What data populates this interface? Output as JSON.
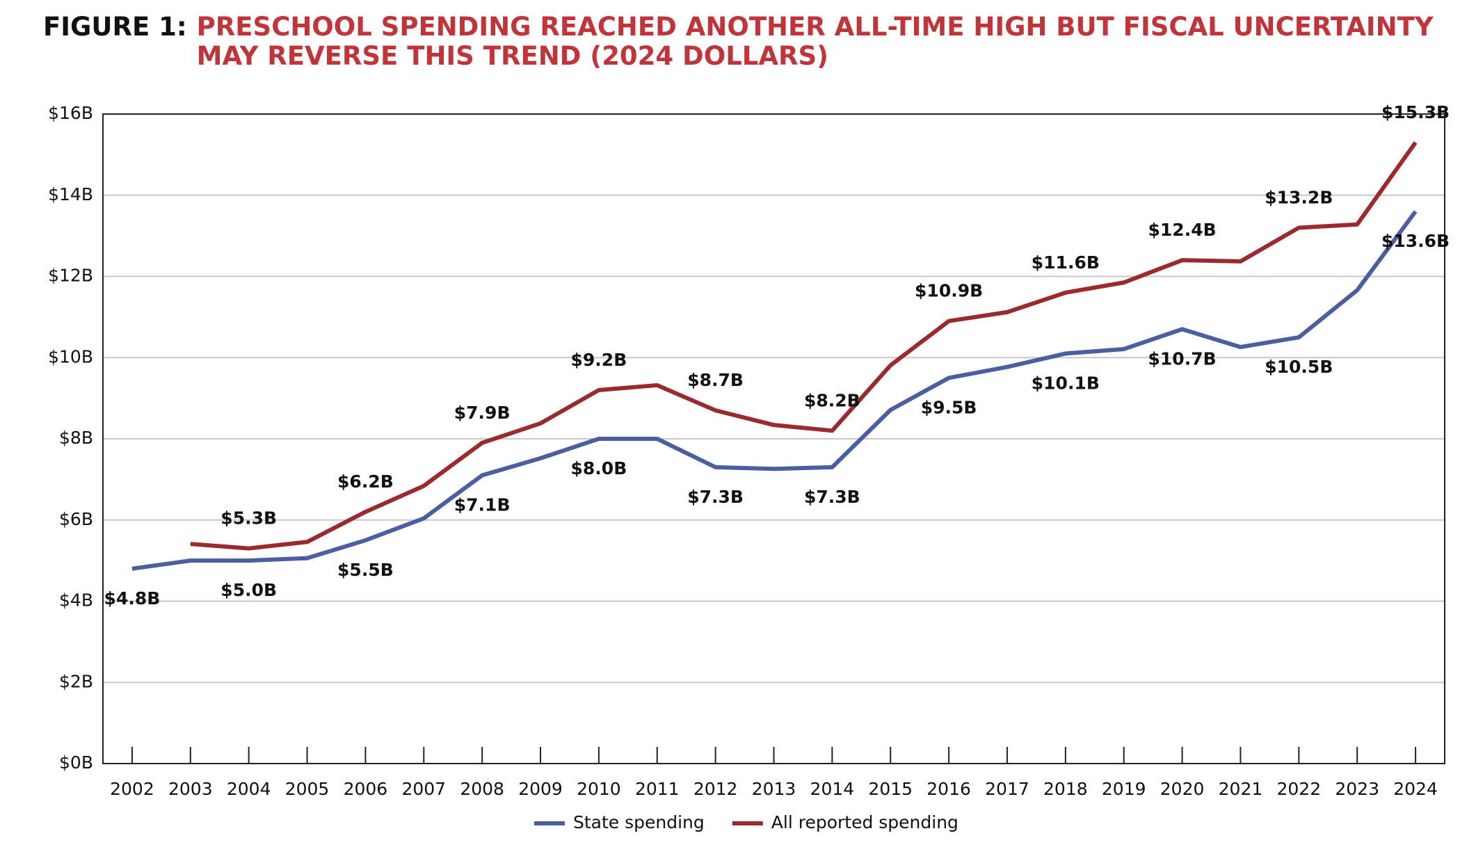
{
  "chart_data": {
    "type": "line",
    "figure_label": "FIGURE 1:",
    "title": "PRESCHOOL SPENDING REACHED ANOTHER ALL-TIME HIGH BUT FISCAL UNCERTAINTY MAY REVERSE THIS TREND (2024 DOLLARS)",
    "categories": [
      "2002",
      "2003",
      "2004",
      "2005",
      "2006",
      "2007",
      "2008",
      "2009",
      "2010",
      "2011",
      "2012",
      "2013",
      "2014",
      "2015",
      "2016",
      "2017",
      "2018",
      "2019",
      "2020",
      "2021",
      "2022",
      "2023",
      "2024"
    ],
    "ylim": [
      0,
      16
    ],
    "yticks": [
      {
        "value": 0,
        "label": "$0B"
      },
      {
        "value": 2,
        "label": "$2B"
      },
      {
        "value": 4,
        "label": "$4B"
      },
      {
        "value": 6,
        "label": "$6B"
      },
      {
        "value": 8,
        "label": "$8B"
      },
      {
        "value": 10,
        "label": "$10B"
      },
      {
        "value": 12,
        "label": "$12B"
      },
      {
        "value": 14,
        "label": "$14B"
      },
      {
        "value": 16,
        "label": "$16B"
      }
    ],
    "grid": true,
    "legend": "bottom",
    "series": [
      {
        "name": "State spending",
        "color": "#4a5ea0",
        "values": [
          4.8,
          5.0,
          5.0,
          5.06,
          5.5,
          6.04,
          7.1,
          7.52,
          8.0,
          8.0,
          7.3,
          7.26,
          7.3,
          8.71,
          9.5,
          9.77,
          10.1,
          10.21,
          10.7,
          10.26,
          10.5,
          11.66,
          13.6
        ],
        "value_labels": [
          "$4.8B",
          null,
          "$5.0B",
          null,
          "$5.5B",
          null,
          "$7.1B",
          null,
          "$8.0B",
          null,
          "$7.3B",
          null,
          "$7.3B",
          null,
          "$9.5B",
          null,
          "$10.1B",
          null,
          "$10.7B",
          null,
          "$10.5B",
          null,
          "$13.6B"
        ]
      },
      {
        "name": "All reported spending",
        "color": "#9b2a2e",
        "values": [
          null,
          5.41,
          5.3,
          5.46,
          6.2,
          6.84,
          7.9,
          8.38,
          9.2,
          9.32,
          8.7,
          8.34,
          8.2,
          9.81,
          10.9,
          11.12,
          11.6,
          11.85,
          12.4,
          12.37,
          13.2,
          13.28,
          15.3
        ],
        "value_labels": [
          null,
          null,
          "$5.3B",
          null,
          "$6.2B",
          null,
          "$7.9B",
          null,
          "$9.2B",
          null,
          "$8.7B",
          null,
          "$8.2B",
          null,
          "$10.9B",
          null,
          "$11.6B",
          null,
          "$12.4B",
          null,
          "$13.2B",
          null,
          "$15.3B"
        ]
      }
    ]
  }
}
